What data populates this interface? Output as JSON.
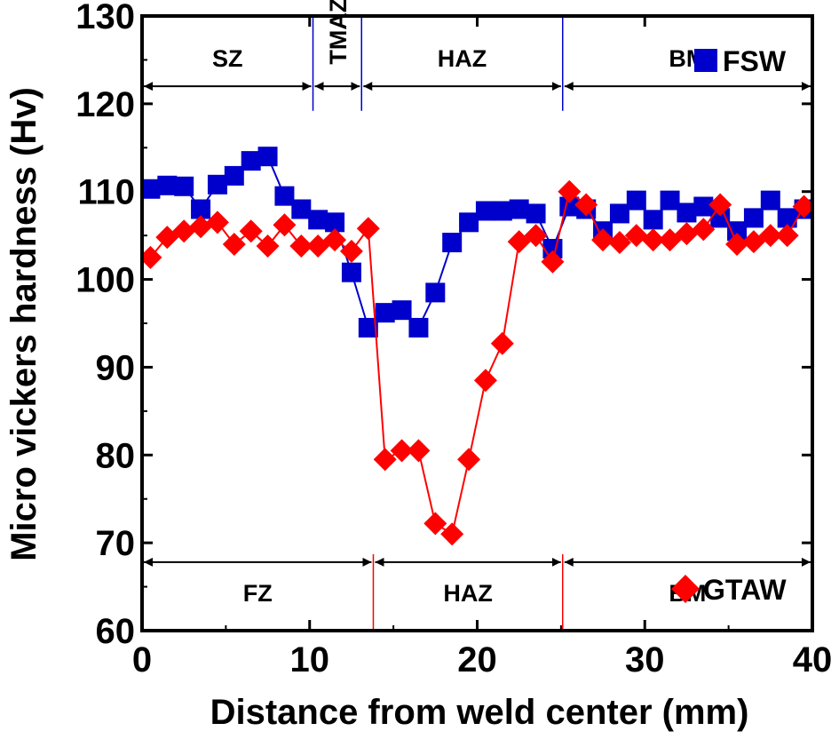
{
  "chart_data": {
    "type": "line",
    "title": "",
    "xlabel": "Distance from weld center (mm)",
    "ylabel": "Micro vickers hardness (Hv)",
    "xlim": [
      0,
      40
    ],
    "ylim": [
      60,
      130
    ],
    "xticks": [
      0,
      10,
      20,
      30,
      40
    ],
    "yticks": [
      60,
      70,
      80,
      90,
      100,
      110,
      120,
      130
    ],
    "grid": false,
    "legend_placement": "inside",
    "series": [
      {
        "name": "FSW",
        "color": "#0000cc",
        "marker": "square",
        "x": [
          0.5,
          1.5,
          2.5,
          3.5,
          4.5,
          5.5,
          6.5,
          7.5,
          8.5,
          9.5,
          10.5,
          11.5,
          12.5,
          13.5,
          14.5,
          15.5,
          16.5,
          17.5,
          18.5,
          19.5,
          20.5,
          21.5,
          22.5,
          23.5,
          24.5,
          25.5,
          26.5,
          27.5,
          28.5,
          29.5,
          30.5,
          31.5,
          32.5,
          33.5,
          34.5,
          35.5,
          36.5,
          37.5,
          38.5,
          39.5
        ],
        "y": [
          110.3,
          110.7,
          110.6,
          108.0,
          110.8,
          111.8,
          113.5,
          114.0,
          109.5,
          108.0,
          106.8,
          106.5,
          100.8,
          94.5,
          96.2,
          96.5,
          94.5,
          98.5,
          104.2,
          106.5,
          107.8,
          107.8,
          108.0,
          107.5,
          103.5,
          108.3,
          108.0,
          105.5,
          107.5,
          109.0,
          106.8,
          109.0,
          107.6,
          108.3,
          107.0,
          105.5,
          107.0,
          109.0,
          107.0,
          108.0
        ]
      },
      {
        "name": "GTAW",
        "color": "#ff0000",
        "marker": "diamond",
        "x": [
          0.5,
          1.5,
          2.5,
          3.5,
          4.5,
          5.5,
          6.5,
          7.5,
          8.5,
          9.5,
          10.5,
          11.5,
          12.5,
          13.5,
          14.5,
          15.5,
          16.5,
          17.5,
          18.5,
          19.5,
          20.5,
          21.5,
          22.5,
          23.5,
          24.5,
          25.5,
          26.5,
          27.5,
          28.5,
          29.5,
          30.5,
          31.5,
          32.5,
          33.5,
          34.5,
          35.5,
          36.5,
          37.5,
          38.5,
          39.5,
          40.5
        ],
        "y": [
          102.5,
          104.8,
          105.5,
          106.0,
          106.5,
          104.0,
          105.5,
          103.8,
          106.2,
          103.8,
          103.8,
          104.5,
          103.2,
          105.8,
          79.5,
          80.5,
          80.5,
          72.2,
          71.0,
          79.5,
          88.5,
          92.7,
          104.3,
          105.0,
          102.0,
          110.0,
          108.5,
          104.5,
          104.2,
          105.0,
          104.5,
          104.5,
          105.2,
          105.7,
          108.5,
          104.0,
          104.3,
          105.0,
          105.0,
          108.3,
          108.3
        ]
      }
    ],
    "annotations": {
      "fsw_zones": [
        {
          "label": "SZ",
          "from": 0,
          "to": 10.2
        },
        {
          "label": "TMAZ",
          "from": 10.2,
          "to": 13.1
        },
        {
          "label": "HAZ",
          "from": 13.1,
          "to": 25.1
        },
        {
          "label": "BM",
          "from": 25.1,
          "to": 40
        }
      ],
      "fsw_boundaries": [
        10.2,
        13.1,
        25.1
      ],
      "gtaw_zones": [
        {
          "label": "FZ",
          "from": 0,
          "to": 13.8
        },
        {
          "label": "HAZ",
          "from": 13.8,
          "to": 25.1
        },
        {
          "label": "BM",
          "from": 25.1,
          "to": 40
        }
      ],
      "gtaw_boundaries": [
        13.8,
        25.1
      ],
      "fsw_arrow_y": 122,
      "gtaw_arrow_y": 67.8
    }
  }
}
